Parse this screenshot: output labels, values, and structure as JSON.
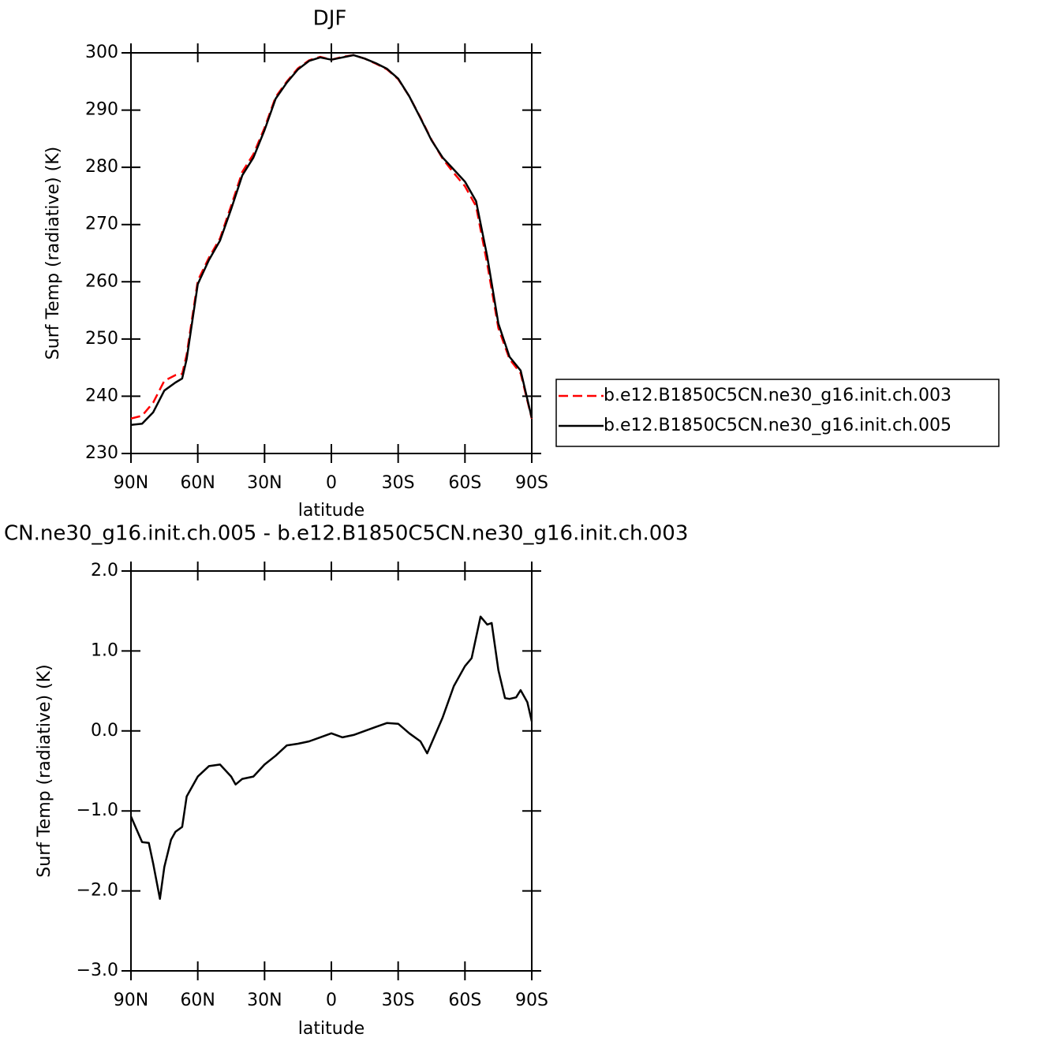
{
  "chart_data": [
    {
      "type": "line",
      "title": "DJF",
      "x_label": "latitude",
      "y_label": "Surf Temp (radiative) (K)",
      "x": [
        90,
        85,
        80,
        75,
        70,
        67,
        65,
        60,
        55,
        50,
        45,
        40,
        35,
        30,
        25,
        20,
        15,
        10,
        5,
        0,
        -5,
        -10,
        -15,
        -20,
        -25,
        -30,
        -35,
        -40,
        -45,
        -50,
        -55,
        -60,
        -65,
        -70,
        -75,
        -80,
        -85,
        -90
      ],
      "series": [
        {
          "name": "b.e12.B1850C5CN.ne30_g16.init.ch.003",
          "color": "#ff0000",
          "line_style": "dashed",
          "values": [
            236.1,
            236.6,
            238.9,
            242.7,
            243.7,
            243.9,
            247.3,
            260.2,
            264.2,
            267.6,
            273.3,
            279.2,
            282.3,
            286.9,
            292.3,
            295.0,
            297.3,
            298.7,
            299.3,
            298.8,
            299.3,
            299.6,
            299.0,
            298.1,
            297.1,
            295.4,
            292.4,
            288.7,
            284.8,
            281.5,
            279.0,
            276.7,
            273.2,
            263.1,
            251.9,
            246.5,
            244.0,
            236.1
          ]
        },
        {
          "name": "b.e12.B1850C5CN.ne30_g16.init.ch.005",
          "color": "#000000",
          "line_style": "solid",
          "values": [
            235.0,
            235.2,
            237.2,
            241.0,
            242.4,
            243.1,
            246.5,
            259.6,
            263.8,
            267.2,
            272.7,
            278.6,
            281.7,
            286.5,
            292.0,
            294.8,
            297.1,
            298.6,
            299.2,
            298.8,
            299.2,
            299.6,
            299.0,
            298.2,
            297.2,
            295.5,
            292.4,
            288.6,
            284.7,
            281.7,
            279.6,
            277.5,
            274.1,
            264.4,
            252.7,
            246.9,
            244.5,
            236.2
          ]
        }
      ],
      "xlim": [
        90,
        -90
      ],
      "xticks": [
        {
          "value": 90,
          "label": "90N"
        },
        {
          "value": 60,
          "label": "60N"
        },
        {
          "value": 30,
          "label": "30N"
        },
        0,
        {
          "value": -30,
          "label": "30S"
        },
        {
          "value": -60,
          "label": "60S"
        },
        {
          "value": -90,
          "label": "90S"
        }
      ],
      "ylim": [
        230,
        300
      ],
      "yticks": [
        230,
        240,
        250,
        260,
        270,
        280,
        290,
        300
      ],
      "legend": "right"
    },
    {
      "type": "line",
      "title": "CN.ne30_g16.init.ch.005 - b.e12.B1850C5CN.ne30_g16.init.ch.003",
      "x_label": "latitude",
      "y_label": "Surf Temp (radiative) (K)",
      "x": [
        90,
        85,
        82,
        80,
        77,
        75,
        72,
        70,
        67,
        65,
        60,
        55,
        50,
        45,
        43,
        40,
        35,
        30,
        25,
        20,
        15,
        10,
        5,
        0,
        -5,
        -10,
        -15,
        -20,
        -25,
        -30,
        -35,
        -40,
        -43,
        -50,
        -55,
        -60,
        -63,
        -67,
        -70,
        -72,
        -75,
        -78,
        -80,
        -83,
        -85,
        -88,
        -90
      ],
      "values": [
        -1.07,
        -1.39,
        -1.4,
        -1.66,
        -2.1,
        -1.7,
        -1.36,
        -1.26,
        -1.2,
        -0.82,
        -0.57,
        -0.44,
        -0.42,
        -0.57,
        -0.67,
        -0.6,
        -0.57,
        -0.42,
        -0.31,
        -0.18,
        -0.16,
        -0.13,
        -0.08,
        -0.03,
        -0.08,
        -0.05,
        0.0,
        0.05,
        0.1,
        0.09,
        -0.03,
        -0.13,
        -0.28,
        0.17,
        0.56,
        0.81,
        0.91,
        1.43,
        1.33,
        1.35,
        0.76,
        0.41,
        0.4,
        0.42,
        0.51,
        0.36,
        0.12
      ],
      "color": "#000000",
      "xlim": [
        90,
        -90
      ],
      "xticks": [
        {
          "value": 90,
          "label": "90N"
        },
        {
          "value": 60,
          "label": "60N"
        },
        {
          "value": 30,
          "label": "30N"
        },
        0,
        {
          "value": -30,
          "label": "30S"
        },
        {
          "value": -60,
          "label": "60S"
        },
        {
          "value": -90,
          "label": "90S"
        }
      ],
      "ylim": [
        -3,
        2
      ],
      "yticks": [
        {
          "value": -3,
          "label": "−3.0"
        },
        {
          "value": -2,
          "label": "−2.0"
        },
        {
          "value": -1,
          "label": "−1.0"
        },
        {
          "value": 0,
          "label": "0.0"
        },
        {
          "value": 1,
          "label": "1.0"
        },
        {
          "value": 2,
          "label": "2.0"
        }
      ]
    }
  ]
}
